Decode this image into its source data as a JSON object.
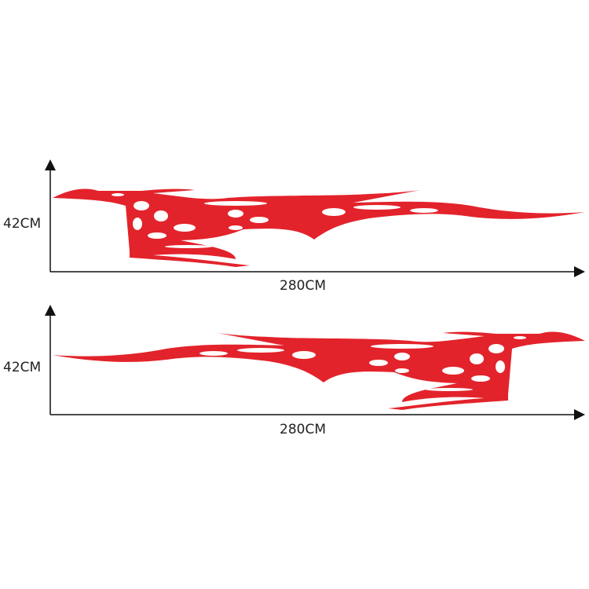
{
  "decals": [
    {
      "height_label": "42CM",
      "width_label": "280CM",
      "orientation": "tail-right"
    },
    {
      "height_label": "42CM",
      "width_label": "280CM",
      "orientation": "tail-left"
    }
  ],
  "colors": {
    "flame": "#e3232b",
    "axis": "#111111"
  }
}
